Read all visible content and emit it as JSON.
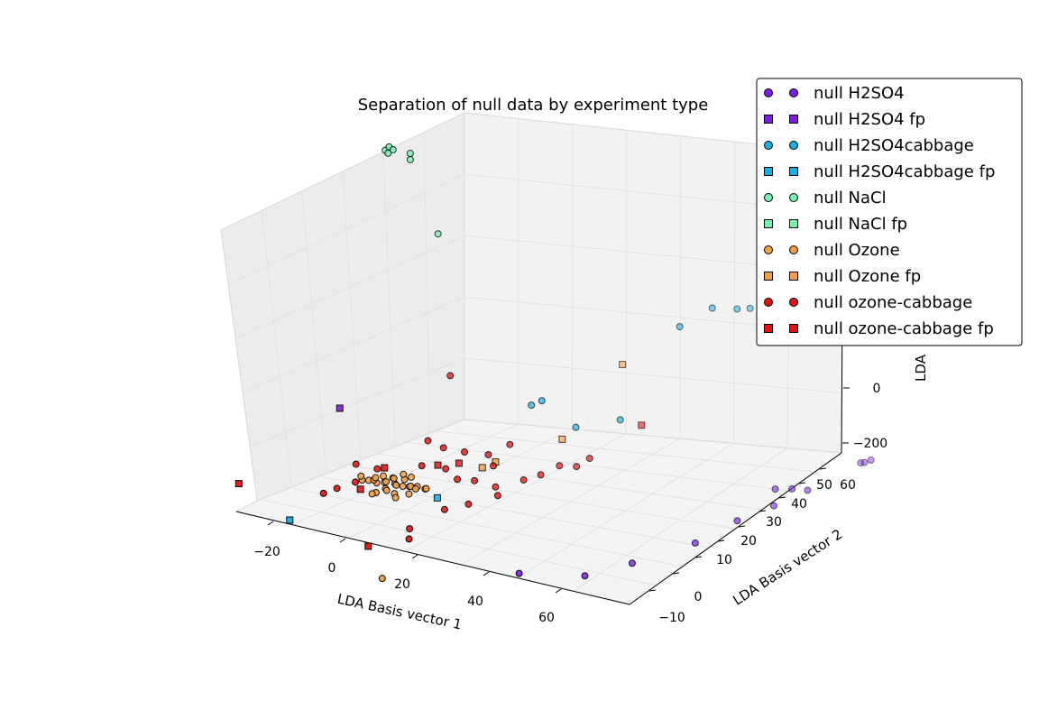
{
  "chart_data": {
    "type": "scatter",
    "projection": "3d",
    "title": "Separation of null data by experiment type",
    "xlabel": "LDA Basis vector 1",
    "ylabel": "LDA Basis vector 2",
    "zlabel": "LDA",
    "xticks": [
      "−20",
      "0",
      "20",
      "40",
      "60"
    ],
    "yticks": [
      "−10",
      "0",
      "10",
      "20",
      "30",
      "40",
      "50",
      "60"
    ],
    "zticks": [
      "0",
      "−200"
    ],
    "grid": true,
    "legend_position": "top-right",
    "series": [
      {
        "name": "null H2SO4",
        "marker": "circle",
        "color": "#7b1fe0",
        "points": [
          [
            40,
            -5,
            -130
          ],
          [
            52,
            2,
            -140
          ],
          [
            60,
            8,
            -120
          ],
          [
            68,
            20,
            -110
          ],
          [
            72,
            30,
            -95
          ],
          [
            76,
            38,
            -90
          ],
          [
            80,
            45,
            -80
          ],
          [
            85,
            58,
            -70
          ],
          [
            86,
            58,
            -68
          ],
          [
            87,
            59,
            -66
          ],
          [
            75,
            40,
            -60
          ],
          [
            78,
            42,
            -65
          ]
        ]
      },
      {
        "name": "null H2SO4 fp",
        "marker": "square",
        "color": "#7b1fe0",
        "points": [
          [
            -8,
            -2,
            160
          ]
        ]
      },
      {
        "name": "null H2SO4cabbage",
        "marker": "circle",
        "color": "#1aaee0",
        "points": [
          [
            22,
            25,
            130
          ],
          [
            24,
            26,
            140
          ],
          [
            50,
            40,
            300
          ],
          [
            55,
            45,
            330
          ],
          [
            58,
            50,
            310
          ],
          [
            60,
            52,
            305
          ],
          [
            30,
            30,
            70
          ],
          [
            38,
            35,
            80
          ]
        ]
      },
      {
        "name": "null H2SO4cabbage fp",
        "marker": "square",
        "color": "#1aaee0",
        "points": [
          [
            12,
            5,
            -40
          ],
          [
            -15,
            -10,
            -100
          ]
        ]
      },
      {
        "name": "null NaCl",
        "marker": "circle",
        "color": "#7af0b0",
        "points": [
          [
            -5,
            10,
            750
          ],
          [
            -4,
            10,
            760
          ],
          [
            -3,
            10,
            755
          ],
          [
            -5,
            11,
            740
          ],
          [
            0,
            12,
            730
          ],
          [
            0,
            12,
            745
          ],
          [
            5,
            15,
            550
          ]
        ]
      },
      {
        "name": "null NaCl fp",
        "marker": "square",
        "color": "#7af0b0",
        "points": []
      },
      {
        "name": "null Ozone",
        "marker": "circle",
        "color": "#f0a04b",
        "points": [
          [
            0,
            0,
            -10
          ],
          [
            2,
            0,
            -5
          ],
          [
            4,
            1,
            -8
          ],
          [
            1,
            2,
            -12
          ],
          [
            3,
            -1,
            -15
          ],
          [
            5,
            0,
            -6
          ],
          [
            6,
            1,
            -10
          ],
          [
            -2,
            0,
            -8
          ],
          [
            2,
            3,
            -4
          ],
          [
            4,
            -2,
            -14
          ],
          [
            0,
            -1,
            0
          ],
          [
            3,
            2,
            0
          ],
          [
            5,
            3,
            -2
          ],
          [
            1,
            1,
            5
          ],
          [
            -1,
            1,
            -3
          ],
          [
            7,
            2,
            -12
          ],
          [
            8,
            1,
            -6
          ],
          [
            9,
            2,
            -8
          ],
          [
            6,
            -2,
            -18
          ],
          [
            10,
            0,
            -5
          ],
          [
            -3,
            -1,
            -6
          ],
          [
            -4,
            0,
            -2
          ],
          [
            2,
            -3,
            -20
          ],
          [
            7,
            -3,
            -22
          ],
          [
            9,
            -1,
            -16
          ],
          [
            11,
            2,
            -10
          ],
          [
            12,
            1,
            -4
          ],
          [
            4,
            4,
            5
          ],
          [
            6,
            4,
            2
          ],
          [
            1,
            -3,
            -25
          ],
          [
            10,
            -12,
            -180
          ]
        ]
      },
      {
        "name": "null Ozone fp",
        "marker": "square",
        "color": "#f0a04b",
        "points": [
          [
            20,
            10,
            30
          ],
          [
            22,
            12,
            40
          ],
          [
            35,
            40,
            190
          ],
          [
            30,
            25,
            60
          ]
        ]
      },
      {
        "name": "null ozone-cabbage",
        "marker": "circle",
        "color": "#e01414",
        "points": [
          [
            10,
            10,
            60
          ],
          [
            14,
            12,
            50
          ],
          [
            18,
            15,
            40
          ],
          [
            20,
            14,
            20
          ],
          [
            -4,
            -2,
            -10
          ],
          [
            -8,
            -3,
            -30
          ],
          [
            -10,
            -5,
            -40
          ],
          [
            -2,
            3,
            10
          ],
          [
            15,
            8,
            0
          ],
          [
            18,
            10,
            -5
          ],
          [
            22,
            12,
            -20
          ],
          [
            25,
            18,
            -20
          ],
          [
            28,
            20,
            -10
          ],
          [
            30,
            24,
            0
          ],
          [
            33,
            26,
            -5
          ],
          [
            35,
            28,
            10
          ],
          [
            20,
            5,
            -40
          ],
          [
            16,
            2,
            -50
          ],
          [
            24,
            10,
            -30
          ],
          [
            12,
            -5,
            -80
          ],
          [
            14,
            -8,
            -90
          ],
          [
            8,
            5,
            30
          ],
          [
            6,
            10,
            70
          ],
          [
            6,
            18,
            200
          ],
          [
            12,
            8,
            20
          ],
          [
            -6,
            1,
            20
          ],
          [
            20,
            20,
            50
          ]
        ]
      },
      {
        "name": "null ozone-cabbage fp",
        "marker": "square",
        "color": "#e01414",
        "points": [
          [
            -28,
            -10,
            -40
          ],
          [
            2,
            0,
            30
          ],
          [
            10,
            8,
            25
          ],
          [
            14,
            10,
            30
          ],
          [
            40,
            40,
            50
          ],
          [
            5,
            -10,
            -120
          ],
          [
            -2,
            -3,
            -20
          ]
        ]
      }
    ]
  }
}
